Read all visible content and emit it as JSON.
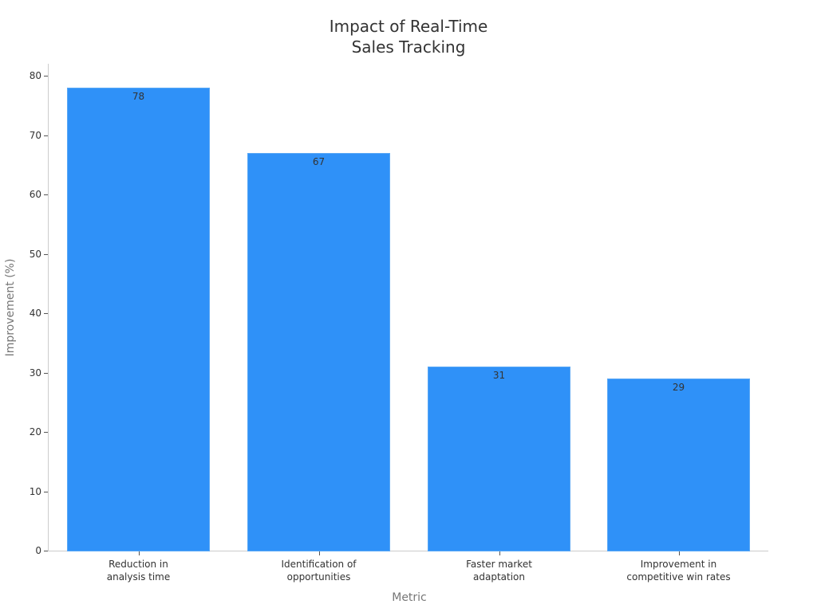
{
  "chart_data": {
    "type": "bar",
    "title": "Impact of Real-Time\nSales Tracking",
    "title_lines": [
      "Impact of Real-Time",
      "Sales Tracking"
    ],
    "xlabel": "Metric",
    "ylabel": "Improvement (%)",
    "categories": [
      "Reduction in analysis time",
      "Identification of opportunities",
      "Faster market adaptation",
      "Improvement in competitive win rates"
    ],
    "category_labels": [
      "Reduction in\nanalysis time",
      "Identification of\nopportunities",
      "Faster market\nadaptation",
      "Improvement in\ncompetitive win rates"
    ],
    "values": [
      78,
      67,
      31,
      29
    ],
    "value_labels": [
      "78",
      "67",
      "31",
      "29"
    ],
    "ylim": [
      0,
      82
    ],
    "yticks": [
      0,
      10,
      20,
      30,
      40,
      50,
      60,
      70,
      80
    ],
    "ytick_labels": [
      "0",
      "10",
      "20",
      "30",
      "40",
      "50",
      "60",
      "70",
      "80"
    ],
    "grid": false,
    "legend": null,
    "colors": {
      "bar": "#2f91f8",
      "bar_edge": "#5aa8f5",
      "axis": "#cccccc",
      "text": "#333333",
      "axis_label": "#777777"
    }
  }
}
